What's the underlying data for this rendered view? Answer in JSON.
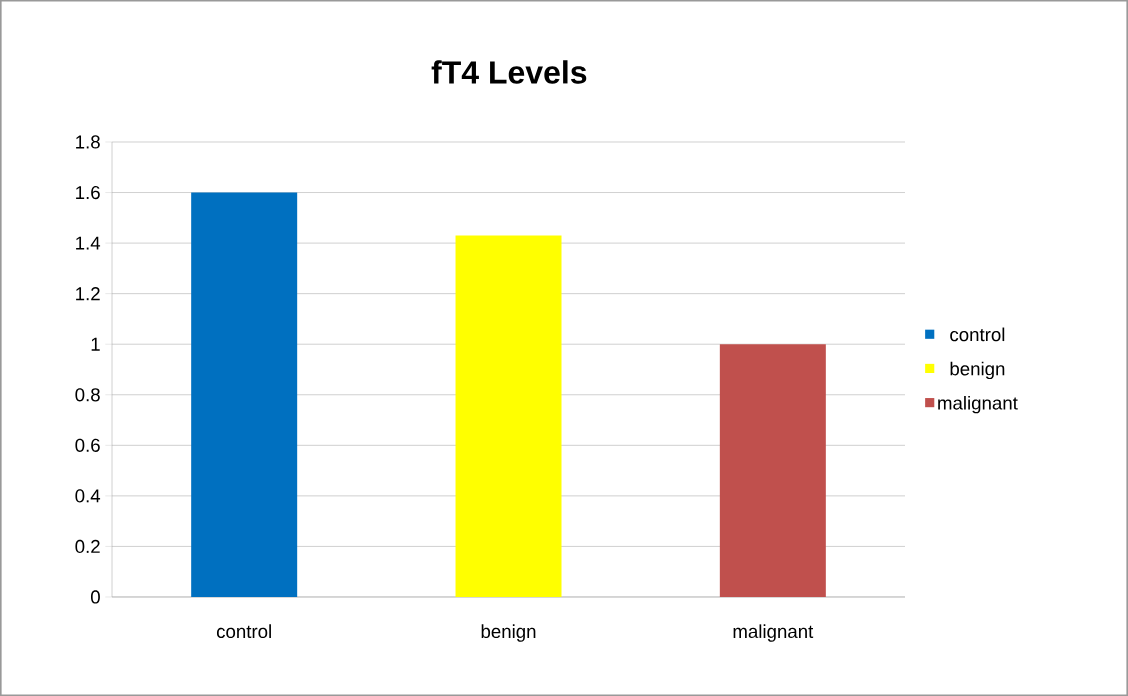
{
  "chart_data": {
    "type": "bar",
    "title": "fT4 Levels",
    "categories": [
      "control",
      "benign",
      "malignant"
    ],
    "series": [
      {
        "name": "control",
        "color": "#0070c0",
        "values": [
          1.6,
          null,
          null
        ]
      },
      {
        "name": "benign",
        "color": "#ffff00",
        "values": [
          null,
          1.43,
          null
        ]
      },
      {
        "name": "malignant",
        "color": "#c0504d",
        "values": [
          null,
          null,
          1.0
        ]
      }
    ],
    "ylim": [
      0,
      1.8
    ],
    "yticks": [
      0,
      0.2,
      0.4,
      0.6,
      0.8,
      1,
      1.2,
      1.4,
      1.6,
      1.8
    ],
    "grid": "y",
    "legend": "right"
  }
}
